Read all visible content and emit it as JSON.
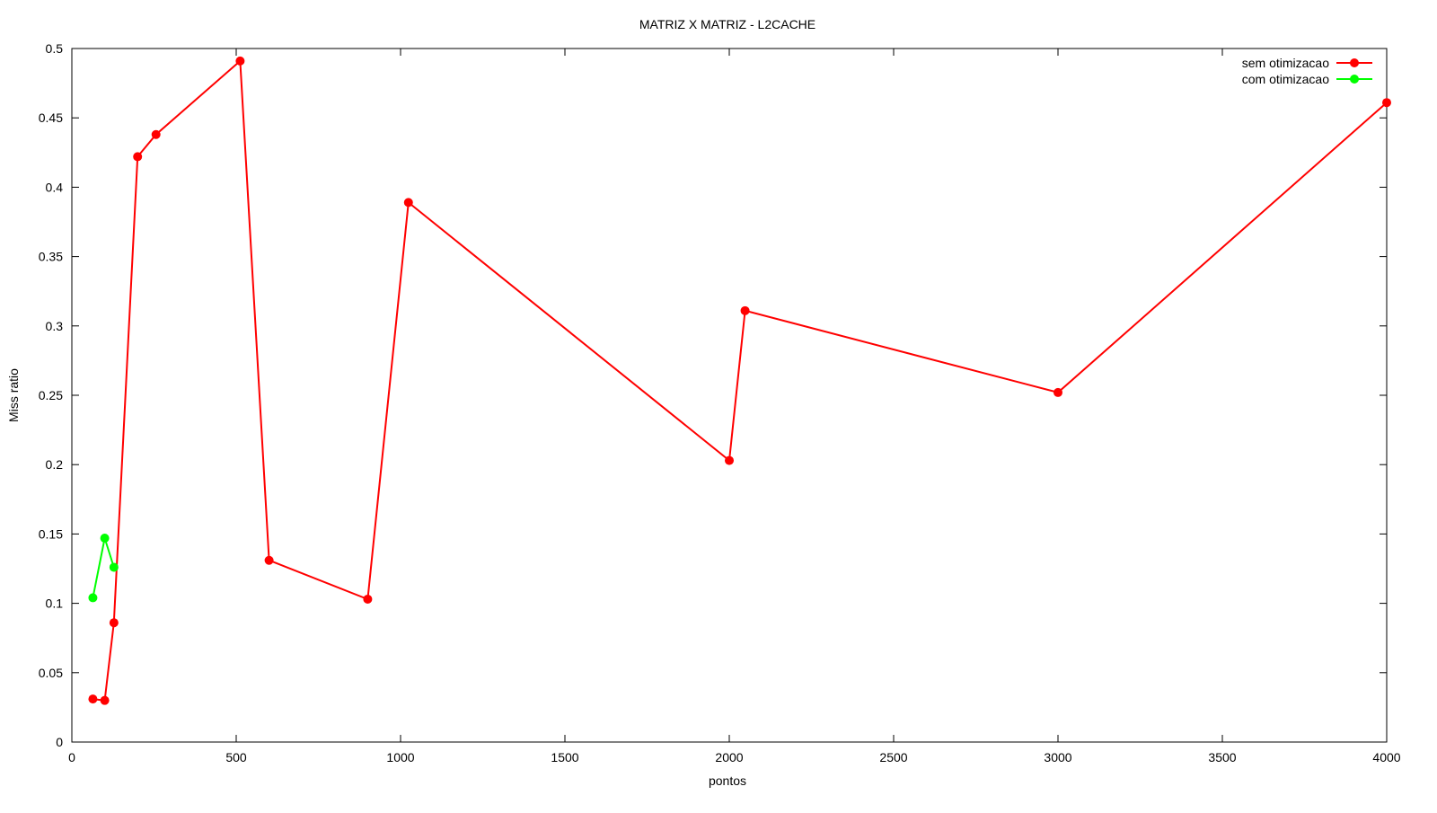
{
  "chart_data": {
    "type": "line",
    "title": "MATRIZ X MATRIZ - L2CACHE",
    "xlabel": "pontos",
    "ylabel": "Miss ratio",
    "xlim": [
      0,
      4000
    ],
    "ylim": [
      0,
      0.5
    ],
    "xticks": [
      "0",
      "500",
      "1000",
      "1500",
      "2000",
      "2500",
      "3000",
      "3500",
      "4000"
    ],
    "xtick_values": [
      0,
      500,
      1000,
      1500,
      2000,
      2500,
      3000,
      3500,
      4000
    ],
    "yticks": [
      "0",
      "0.05",
      "0.1",
      "0.15",
      "0.2",
      "0.25",
      "0.3",
      "0.35",
      "0.4",
      "0.45",
      "0.5"
    ],
    "ytick_values": [
      0,
      0.05,
      0.1,
      0.15,
      0.2,
      0.25,
      0.3,
      0.35,
      0.4,
      0.45,
      0.5
    ],
    "grid": false,
    "legend_position": "top-right",
    "series": [
      {
        "name": "sem otimizacao",
        "color": "#ff0000",
        "points": [
          {
            "x": 64,
            "y": 0.031
          },
          {
            "x": 100,
            "y": 0.03
          },
          {
            "x": 128,
            "y": 0.086
          },
          {
            "x": 200,
            "y": 0.422
          },
          {
            "x": 256,
            "y": 0.438
          },
          {
            "x": 512,
            "y": 0.491
          },
          {
            "x": 600,
            "y": 0.131
          },
          {
            "x": 900,
            "y": 0.103
          },
          {
            "x": 1024,
            "y": 0.389
          },
          {
            "x": 2000,
            "y": 0.203
          },
          {
            "x": 2048,
            "y": 0.311
          },
          {
            "x": 3000,
            "y": 0.252
          },
          {
            "x": 4000,
            "y": 0.461
          }
        ]
      },
      {
        "name": "com otimizacao",
        "color": "#00ff00",
        "points": [
          {
            "x": 64,
            "y": 0.104
          },
          {
            "x": 100,
            "y": 0.147
          },
          {
            "x": 128,
            "y": 0.126
          }
        ]
      }
    ]
  }
}
